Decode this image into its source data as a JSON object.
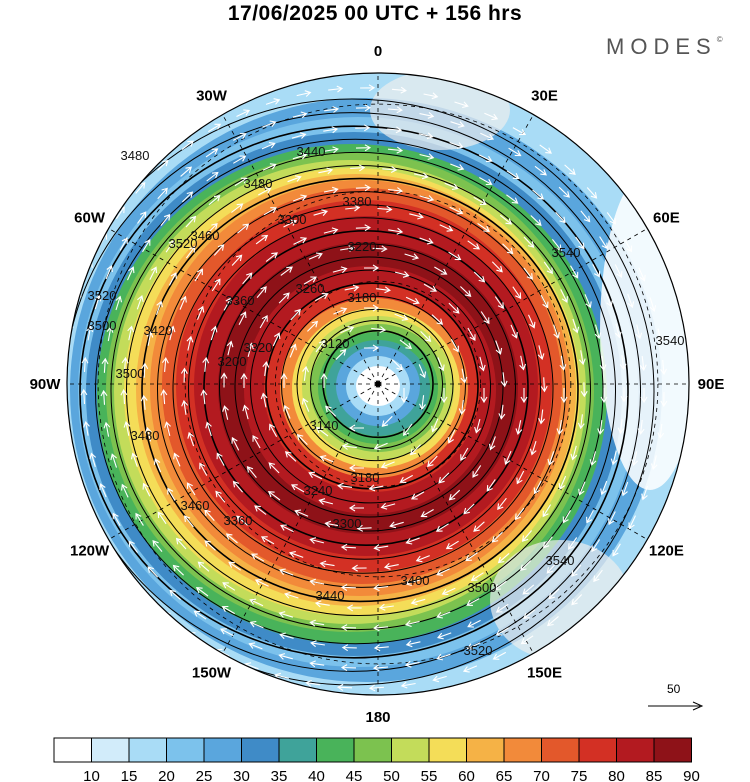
{
  "title": "17/06/2025  00 UTC  + 156 hrs",
  "brand": "MODES",
  "brand_mark": "©",
  "longitude_labels": [
    {
      "text": "0",
      "lon": 0
    },
    {
      "text": "30E",
      "lon": 30
    },
    {
      "text": "60E",
      "lon": 60
    },
    {
      "text": "90E",
      "lon": 90
    },
    {
      "text": "120E",
      "lon": 120
    },
    {
      "text": "150E",
      "lon": 150
    },
    {
      "text": "180",
      "lon": 180
    },
    {
      "text": "150W",
      "lon": 210
    },
    {
      "text": "120W",
      "lon": 240
    },
    {
      "text": "90W",
      "lon": 270
    },
    {
      "text": "60W",
      "lon": 300
    },
    {
      "text": "30W",
      "lon": 330
    }
  ],
  "contour_labels": [
    "3480",
    "3520",
    "3480",
    "3460",
    "3540",
    "3440",
    "3380",
    "3300",
    "3220",
    "3180",
    "3260",
    "3360",
    "3420",
    "3500",
    "3520",
    "3540",
    "3120",
    "3200",
    "3320",
    "3500",
    "3480",
    "3140",
    "3180",
    "3240",
    "3300",
    "3460",
    "3360",
    "3400",
    "3440",
    "3500",
    "3520",
    "3540"
  ],
  "legend": {
    "colors": [
      "#ffffff",
      "#d2ecfa",
      "#a9dcf6",
      "#7cc2ec",
      "#5aa6dd",
      "#3f8bc7",
      "#3fa39a",
      "#49b35a",
      "#7cc24f",
      "#c3dc5a",
      "#f4dd58",
      "#f5b246",
      "#f28a3a",
      "#e3582b",
      "#d33024",
      "#b31a20",
      "#8e1218"
    ],
    "labels": [
      "10",
      "15",
      "20",
      "25",
      "30",
      "35",
      "40",
      "45",
      "50",
      "55",
      "60",
      "65",
      "70",
      "75",
      "80",
      "85",
      "90"
    ]
  },
  "reference_vector": {
    "label": "50"
  }
}
